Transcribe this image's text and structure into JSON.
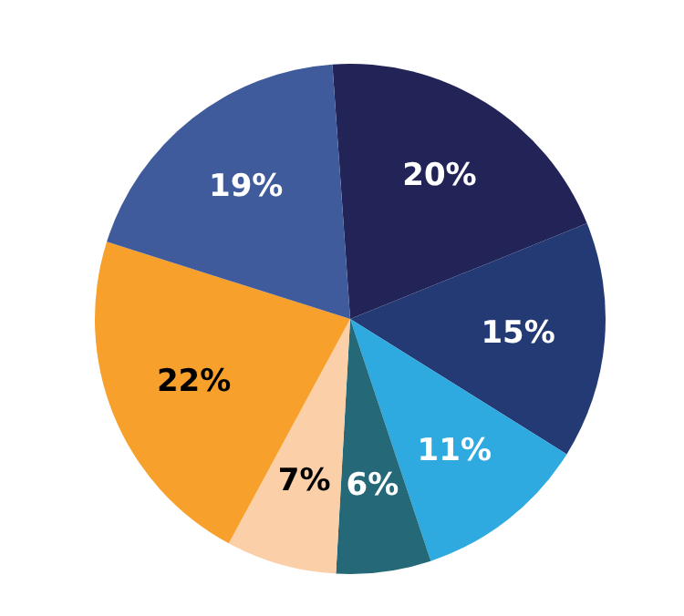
{
  "chart_data": {
    "type": "pie",
    "categories": [
      null,
      null,
      null,
      null,
      null,
      null,
      null
    ],
    "values": [
      20,
      15,
      11,
      6,
      7,
      22,
      19
    ],
    "colors": [
      "#222457",
      "#233a74",
      "#2eaae1",
      "#256978",
      "#fbcfa8",
      "#f7a02b",
      "#3f5b9c"
    ],
    "value_labels": [
      "20%",
      "15%",
      "11%",
      "6%",
      "7%",
      "22%",
      "19%"
    ],
    "legend": false
  }
}
